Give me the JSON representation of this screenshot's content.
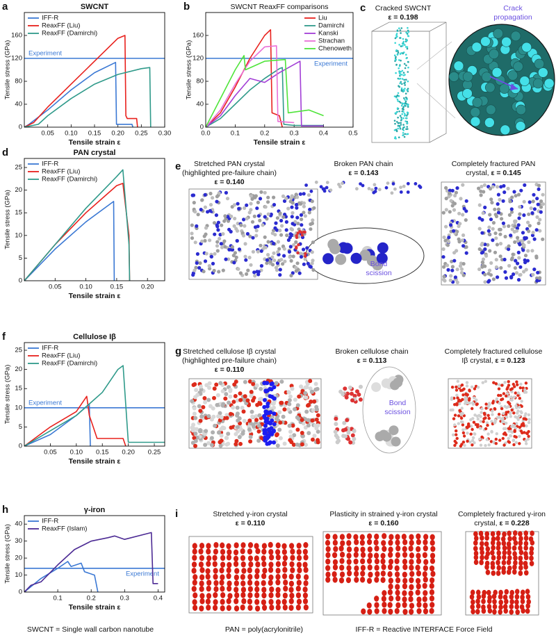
{
  "chart_data": [
    {
      "type": "line",
      "label": "a",
      "title": "SWCNT",
      "xlabel": "Tensile strain ε",
      "ylabel": "Tensile stress (GPa)",
      "xlim": [
        0,
        0.3
      ],
      "ylim": [
        0,
        200
      ],
      "xticks": [
        0.05,
        {
          "value": 0.1,
          "label": "0.10"
        },
        0.15,
        {
          "value": 0.2,
          "label": "0.20"
        },
        0.25,
        {
          "value": 0.3,
          "label": "0.30"
        }
      ],
      "yticks": [
        0,
        40,
        80,
        120,
        160
      ],
      "legend": "upper left",
      "reference": {
        "value": 120,
        "label": "Experiment",
        "color": "#3a78d4"
      },
      "series": [
        {
          "name": "IFF-R",
          "color": "#3a78d4",
          "x": [
            0,
            0.01,
            0.05,
            0.1,
            0.15,
            0.195,
            0.197,
            0.23,
            0.232
          ],
          "values": [
            0,
            5,
            30,
            65,
            95,
            113,
            5,
            5,
            0
          ]
        },
        {
          "name": "ReaxFF (Liu)",
          "color": "#e8201c",
          "x": [
            0,
            0.02,
            0.05,
            0.1,
            0.15,
            0.2,
            0.215,
            0.217,
            0.22,
            0.24,
            0.242
          ],
          "values": [
            0,
            8,
            35,
            75,
            115,
            155,
            160,
            20,
            15,
            15,
            0
          ]
        },
        {
          "name": "ReaxFF (Damirchi)",
          "color": "#2f9a8a",
          "x": [
            0,
            0.03,
            0.05,
            0.1,
            0.15,
            0.2,
            0.25,
            0.268,
            0.27
          ],
          "values": [
            0,
            5,
            20,
            50,
            75,
            92,
            102,
            104,
            0
          ]
        }
      ]
    },
    {
      "type": "line",
      "label": "b",
      "title": "SWCNT ReaxFF comparisons",
      "xlabel": "Tensile strain ε",
      "ylabel": "Tensile stress (GPa)",
      "xlim": [
        0,
        0.5
      ],
      "ylim": [
        0,
        200
      ],
      "xticks": [
        {
          "value": 0,
          "label": "0.0"
        },
        0.1,
        0.2,
        0.3,
        0.4,
        0.5
      ],
      "yticks": [
        0,
        40,
        80,
        120,
        160
      ],
      "legend": "upper right",
      "reference": {
        "value": 120,
        "label": "Experiment",
        "color": "#3a78d4"
      },
      "series": [
        {
          "name": "Liu",
          "color": "#e8201c",
          "x": [
            0,
            0.05,
            0.1,
            0.15,
            0.2,
            0.22,
            0.225,
            0.25,
            0.26
          ],
          "values": [
            0,
            25,
            70,
            120,
            160,
            170,
            25,
            20,
            0
          ]
        },
        {
          "name": "Damirchi",
          "color": "#2f9a8a",
          "x": [
            0,
            0.05,
            0.1,
            0.15,
            0.2,
            0.25,
            0.26,
            0.265,
            0.3,
            0.4
          ],
          "values": [
            0,
            15,
            40,
            65,
            85,
            102,
            104,
            5,
            3,
            3
          ]
        },
        {
          "name": "Kanski",
          "color": "#a23ed6",
          "x": [
            0,
            0.05,
            0.1,
            0.15,
            0.2,
            0.25,
            0.32,
            0.325,
            0.4
          ],
          "values": [
            0,
            20,
            55,
            85,
            78,
            95,
            115,
            2,
            2
          ]
        },
        {
          "name": "Strachan",
          "color": "#e96fd6",
          "x": [
            0,
            0.05,
            0.1,
            0.15,
            0.2,
            0.24,
            0.245,
            0.3
          ],
          "values": [
            0,
            30,
            75,
            115,
            140,
            142,
            10,
            8
          ]
        },
        {
          "name": "Chenoweth",
          "color": "#4fe43a",
          "x": [
            0,
            0.05,
            0.1,
            0.13,
            0.135,
            0.2,
            0.27,
            0.28,
            0.35,
            0.4
          ],
          "values": [
            0,
            50,
            100,
            125,
            100,
            115,
            118,
            25,
            30,
            20
          ]
        }
      ]
    },
    {
      "type": "line",
      "label": "d",
      "title": "PAN crystal",
      "xlabel": "Tensile strain ε",
      "ylabel": "Tensile stress (GPa)",
      "xlim": [
        0,
        0.228
      ],
      "ylim": [
        0,
        27
      ],
      "xticks": [
        0.05,
        {
          "value": 0.1,
          "label": "0.10"
        },
        0.15,
        {
          "value": 0.2,
          "label": "0.20"
        }
      ],
      "yticks": [
        0,
        5,
        10,
        15,
        20,
        25
      ],
      "legend": "upper left",
      "series": [
        {
          "name": "IFF-R",
          "color": "#3a78d4",
          "x": [
            0,
            0.05,
            0.1,
            0.145,
            0.146
          ],
          "values": [
            0,
            7,
            13,
            17.5,
            0
          ]
        },
        {
          "name": "ReaxFF (Liu)",
          "color": "#e8201c",
          "x": [
            0,
            0.05,
            0.1,
            0.15,
            0.16,
            0.17,
            0.171
          ],
          "values": [
            0,
            8,
            15,
            21,
            21.5,
            10,
            0
          ]
        },
        {
          "name": "ReaxFF (Damirchi)",
          "color": "#2f9a8a",
          "x": [
            0,
            0.05,
            0.1,
            0.15,
            0.16,
            0.17,
            0.171
          ],
          "values": [
            0,
            8,
            16,
            23,
            24.5,
            8,
            0
          ]
        }
      ]
    },
    {
      "type": "line",
      "label": "f",
      "title": "Cellulose Iβ",
      "xlabel": "Tensile strain ε",
      "ylabel": "Tensile stress (GPa)",
      "xlim": [
        0,
        0.27
      ],
      "ylim": [
        0,
        27
      ],
      "xticks": [
        0.05,
        {
          "value": 0.1,
          "label": "0.10"
        },
        0.15,
        {
          "value": 0.2,
          "label": "0.20"
        },
        0.25
      ],
      "yticks": [
        0,
        5,
        10,
        15,
        20,
        25
      ],
      "legend": "upper left",
      "reference": {
        "value": 10,
        "label": "Experiment",
        "color": "#3a78d4"
      },
      "series": [
        {
          "name": "IFF-R",
          "color": "#3a78d4",
          "x": [
            0,
            0.05,
            0.1,
            0.125,
            0.127
          ],
          "values": [
            0,
            3,
            8,
            11,
            0
          ]
        },
        {
          "name": "ReaxFF (Liu)",
          "color": "#e8201c",
          "x": [
            0,
            0.05,
            0.1,
            0.12,
            0.125,
            0.13,
            0.14,
            0.19,
            0.195
          ],
          "values": [
            0,
            5,
            9,
            13,
            8,
            6,
            2,
            2,
            0
          ]
        },
        {
          "name": "ReaxFF (Damirchi)",
          "color": "#2f9a8a",
          "x": [
            0,
            0.05,
            0.1,
            0.15,
            0.18,
            0.19,
            0.2,
            0.27
          ],
          "values": [
            0,
            4,
            8,
            14,
            20,
            21,
            1,
            1
          ]
        }
      ]
    },
    {
      "type": "line",
      "label": "h",
      "title": "γ-iron",
      "xlabel": "Tensile strain ε",
      "ylabel": "Tensile stress (GPa)",
      "xlim": [
        0,
        0.42
      ],
      "ylim": [
        0,
        45
      ],
      "xticks": [
        0.1,
        0.2,
        0.3,
        0.4
      ],
      "yticks": [
        0,
        10,
        20,
        30,
        40
      ],
      "legend": "upper left",
      "reference": {
        "value": 14,
        "label": "Experiment",
        "color": "#3a78d4"
      },
      "series": [
        {
          "name": "IFF-R",
          "color": "#3a78d4",
          "x": [
            0,
            0.05,
            0.1,
            0.13,
            0.14,
            0.17,
            0.18,
            0.21,
            0.22
          ],
          "values": [
            0,
            8,
            14,
            18,
            15,
            17,
            12,
            10,
            0
          ]
        },
        {
          "name": "ReaxFF (Islam)",
          "color": "#4c2a94",
          "x": [
            0,
            0.02,
            0.05,
            0.1,
            0.15,
            0.2,
            0.25,
            0.27,
            0.3,
            0.38,
            0.385,
            0.4
          ],
          "values": [
            0,
            4,
            6,
            16,
            25,
            30,
            32,
            33,
            31,
            35,
            5,
            5
          ]
        }
      ]
    }
  ],
  "panels": {
    "c": {
      "label": "c",
      "title": "Cracked SWCNT",
      "strain": "ε = 0.198",
      "annotation": [
        "Crack",
        "propagation"
      ]
    },
    "e": {
      "label": "e",
      "left": [
        "Stretched PAN crystal",
        "(highlighted pre-failure chain)",
        "ε = 0.140"
      ],
      "middle": [
        "Broken PAN chain",
        "ε = 0.143"
      ],
      "right": [
        "Completely fractured PAN",
        "crystal, ",
        "ε = 0.145"
      ],
      "annotation": [
        "Bond",
        "scission"
      ]
    },
    "g": {
      "label": "g",
      "left": [
        "Stretched cellulose Iβ crystal",
        "(highlighted pre-failure chain)",
        "ε = 0.110"
      ],
      "middle": [
        "Broken cellulose chain",
        "ε = 0.113"
      ],
      "right": [
        "Completely fractured cellulose",
        "Iβ crystal, ",
        "ε = 0.123"
      ],
      "annotation": [
        "Bond",
        "scission"
      ]
    },
    "i": {
      "label": "i",
      "left": [
        "Stretched γ-iron crystal",
        "ε = 0.110"
      ],
      "middle": [
        "Plasticity in strained γ-iron crystal",
        "ε = 0.160"
      ],
      "right": [
        "Completely fractured γ-iron",
        "crystal, ",
        "ε = 0.228"
      ]
    }
  },
  "footnotes": [
    "SWCNT = Single wall carbon nanotube",
    "PAN = poly(acrylonitrile)",
    "IFF-R = Reactive INTERFACE Force Field"
  ]
}
